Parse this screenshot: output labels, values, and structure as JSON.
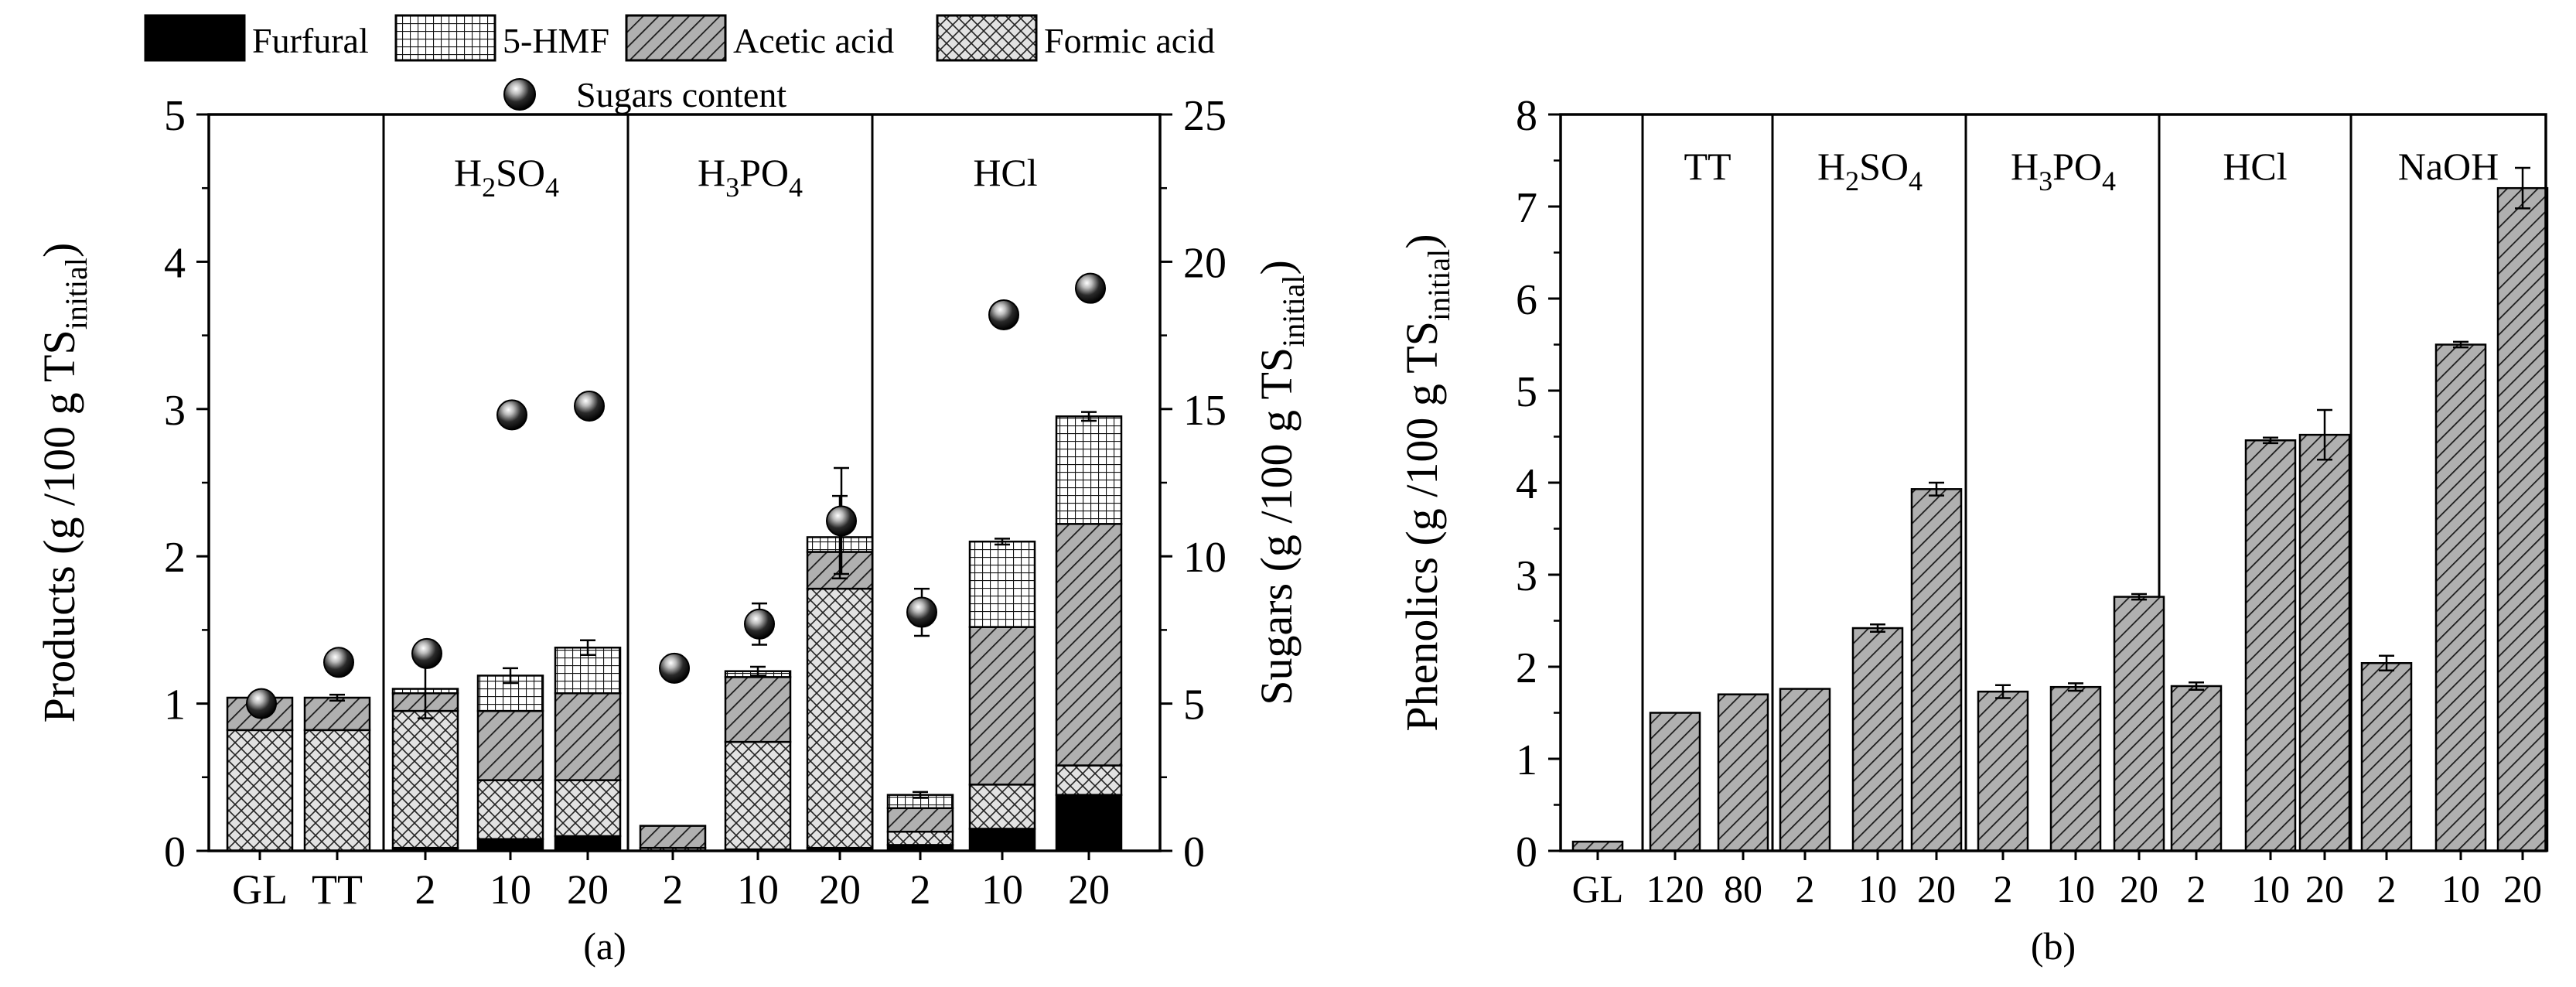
{
  "chart_data": [
    {
      "type": "bar",
      "panel_label": "(a)",
      "stacked": true,
      "ylabel": "Products (g /100 g TS",
      "ylabel_sub": "initial",
      "ylabel_close": ")",
      "y2label": "Sugars (g /100 g TS",
      "y2label_sub": "initial",
      "y2label_close": ")",
      "ylim": [
        0,
        5
      ],
      "y2lim": [
        0,
        25
      ],
      "yticks": [
        "0",
        "1",
        "2",
        "3",
        "4",
        "5"
      ],
      "y2ticks": [
        "0",
        "5",
        "10",
        "15",
        "20",
        "25"
      ],
      "categories": [
        "GL",
        "TT",
        "2",
        "10",
        "20",
        "2",
        "10",
        "20",
        "2",
        "10",
        "20"
      ],
      "groups": [
        {
          "label": "",
          "start": 0,
          "end": 1
        },
        {
          "label": "H",
          "sub1": "2",
          "mid": "SO",
          "sub2": "4",
          "start": 2,
          "end": 4
        },
        {
          "label": "H",
          "sub1": "3",
          "mid": "PO",
          "sub2": "4",
          "start": 5,
          "end": 7
        },
        {
          "label": "HCl",
          "start": 8,
          "end": 10
        }
      ],
      "series": [
        {
          "name": "Furfural",
          "pattern": "solid",
          "values": [
            0.0,
            0.0,
            0.02,
            0.08,
            0.1,
            0.0,
            0.01,
            0.02,
            0.04,
            0.15,
            0.38
          ]
        },
        {
          "name": "Formic acid",
          "pattern": "crosshatch",
          "values": [
            0.82,
            0.82,
            0.93,
            0.4,
            0.38,
            0.02,
            0.73,
            1.76,
            0.09,
            0.3,
            0.2
          ]
        },
        {
          "name": "Acetic acid",
          "pattern": "diagonal",
          "values": [
            0.22,
            0.22,
            0.12,
            0.47,
            0.59,
            0.15,
            0.44,
            0.25,
            0.16,
            1.07,
            1.64
          ]
        },
        {
          "name": "5-HMF",
          "pattern": "grid",
          "values": [
            0.0,
            0.0,
            0.03,
            0.24,
            0.31,
            0.0,
            0.04,
            0.1,
            0.09,
            0.58,
            0.73
          ]
        }
      ],
      "errors": [
        0.02,
        0.02,
        0.2,
        0.05,
        0.05,
        0.0,
        0.03,
        0.28,
        0.02,
        0.02,
        0.03
      ],
      "sugars": {
        "name": "Sugars content",
        "values": [
          5.0,
          6.4,
          6.7,
          14.8,
          15.1,
          6.2,
          7.7,
          11.2,
          8.1,
          18.2,
          19.1
        ],
        "errors": [
          0.2,
          0.2,
          0.2,
          0.2,
          0.2,
          0.2,
          0.7,
          1.8,
          0.8,
          0.2,
          0.2
        ]
      },
      "legend": [
        "Furfural",
        "5-HMF",
        "Acetic acid",
        "Formic acid",
        "Sugars content"
      ]
    },
    {
      "type": "bar",
      "panel_label": "(b)",
      "ylabel": "Phenolics (g /100 g TS",
      "ylabel_sub": "initial",
      "ylabel_close": ")",
      "ylim": [
        0,
        8
      ],
      "yticks": [
        "0",
        "1",
        "2",
        "3",
        "4",
        "5",
        "6",
        "7",
        "8"
      ],
      "categories": [
        "GL",
        "120",
        "80",
        "2",
        "10",
        "20",
        "2",
        "10",
        "20",
        "2",
        "10",
        "20",
        "2",
        "10",
        "20"
      ],
      "groups": [
        {
          "label": "",
          "start": 0,
          "end": 0
        },
        {
          "label": "TT",
          "start": 1,
          "end": 2
        },
        {
          "label": "H",
          "sub1": "2",
          "mid": "SO",
          "sub2": "4",
          "start": 3,
          "end": 5
        },
        {
          "label": "H",
          "sub1": "3",
          "mid": "PO",
          "sub2": "4",
          "start": 6,
          "end": 8
        },
        {
          "label": "HCl",
          "start": 9,
          "end": 11
        },
        {
          "label": "NaOH",
          "start": 12,
          "end": 14
        }
      ],
      "values": [
        0.1,
        1.5,
        1.7,
        1.76,
        2.42,
        3.93,
        1.73,
        1.78,
        2.76,
        1.79,
        4.46,
        4.52,
        2.04,
        5.5,
        7.2
      ],
      "errors": [
        0.0,
        0.0,
        0.0,
        0.0,
        0.04,
        0.07,
        0.07,
        0.04,
        0.03,
        0.04,
        0.03,
        0.27,
        0.08,
        0.03,
        0.22
      ]
    }
  ]
}
